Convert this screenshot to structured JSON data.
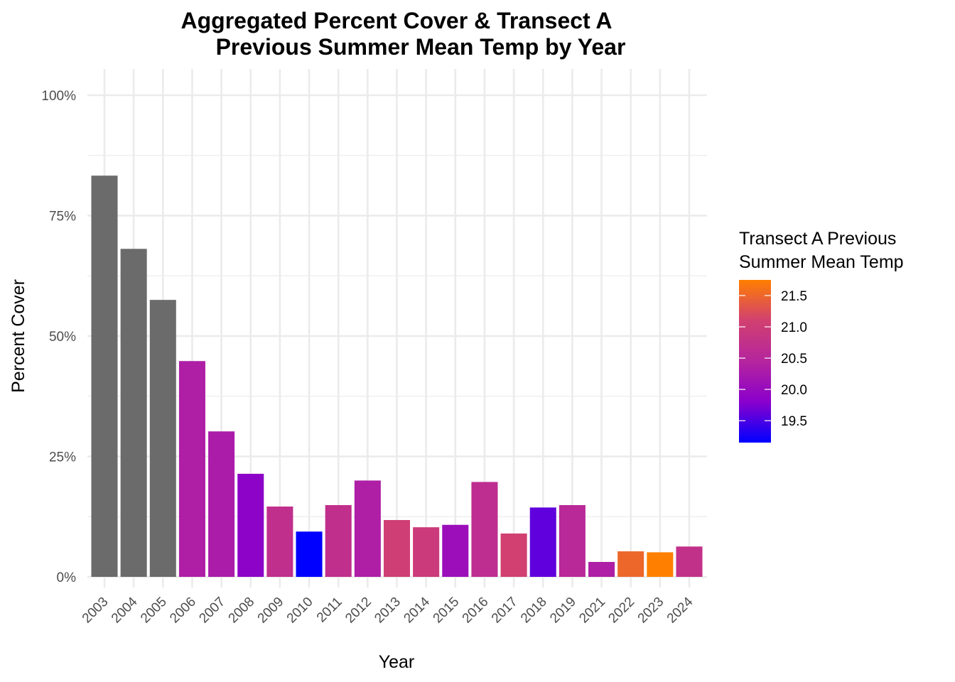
{
  "chart_data": {
    "type": "bar",
    "title": [
      "Aggregated Percent Cover & Transect A",
      "Previous Summer Mean Temp by Year"
    ],
    "xlabel": "Year",
    "ylabel": "Percent Cover",
    "ylim": [
      0,
      100
    ],
    "y_ticks": [
      "0%",
      "25%",
      "50%",
      "75%",
      "100%"
    ],
    "y_tick_values": [
      0,
      25,
      50,
      75,
      100
    ],
    "categories": [
      "2003",
      "2004",
      "2005",
      "2006",
      "2007",
      "2008",
      "2009",
      "2010",
      "2011",
      "2012",
      "2013",
      "2014",
      "2015",
      "2016",
      "2017",
      "2018",
      "2019",
      "2021",
      "2022",
      "2023",
      "2024"
    ],
    "values": [
      83.3,
      68.1,
      57.5,
      44.8,
      30.2,
      21.4,
      14.6,
      9.4,
      14.9,
      20.0,
      11.8,
      10.3,
      10.8,
      19.7,
      9.0,
      14.4,
      14.9,
      3.1,
      5.3,
      5.1,
      6.3
    ],
    "temps": [
      null,
      null,
      null,
      20.35,
      20.3,
      19.85,
      20.7,
      19.15,
      20.7,
      20.35,
      21.05,
      20.95,
      20.05,
      20.65,
      21.1,
      19.6,
      20.55,
      20.35,
      21.5,
      21.75,
      20.75
    ],
    "missing_color": "#6b6b6b",
    "legend": {
      "title": [
        "Transect A Previous",
        "Summer Mean Temp"
      ],
      "position": "right",
      "ticks": [
        "19.5",
        "20.0",
        "20.5",
        "21.0",
        "21.5"
      ],
      "tick_values": [
        19.5,
        20.0,
        20.5,
        21.0,
        21.5
      ],
      "min": 19.15,
      "max": 21.75,
      "colors": [
        "#0000ff",
        "#8a00cc",
        "#b5259e",
        "#d14070",
        "#ff7f00"
      ]
    },
    "grid": true
  }
}
